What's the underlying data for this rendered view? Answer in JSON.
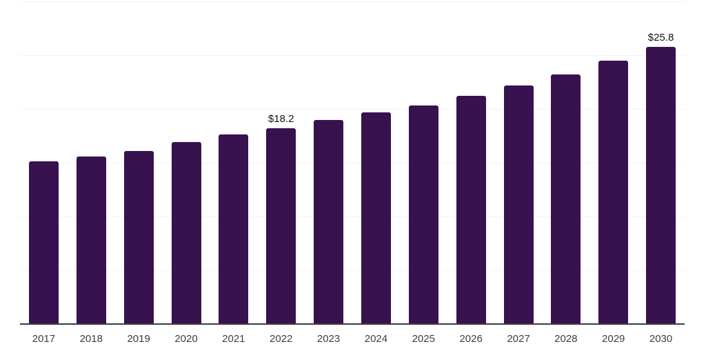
{
  "chart_data": {
    "type": "bar",
    "title": "",
    "xlabel": "",
    "ylabel": "",
    "categories": [
      "2017",
      "2018",
      "2019",
      "2020",
      "2021",
      "2022",
      "2023",
      "2024",
      "2025",
      "2026",
      "2027",
      "2028",
      "2029",
      "2030"
    ],
    "values": [
      15.1,
      15.6,
      16.1,
      16.9,
      17.6,
      18.2,
      19.0,
      19.7,
      20.3,
      21.2,
      22.2,
      23.2,
      24.5,
      25.8
    ],
    "point_labels": [
      "",
      "",
      "",
      "",
      "",
      "$18.2",
      "",
      "",
      "",
      "",
      "",
      "",
      "",
      "$25.8"
    ],
    "labeled_points": [
      {
        "category": "2022",
        "label": "$18.2"
      },
      {
        "category": "2030",
        "label": "$25.8"
      }
    ],
    "ylim": [
      0,
      30
    ],
    "gridline_step": 5,
    "grid": "horizontal-only",
    "legend_position": "none",
    "colors": {
      "bar": "#38114f",
      "gridline": "#f3f3f3",
      "axis_line": "#3c3c3c",
      "tick_label": "#3d3d3d",
      "value_label": "#111111",
      "background": "#ffffff"
    }
  }
}
